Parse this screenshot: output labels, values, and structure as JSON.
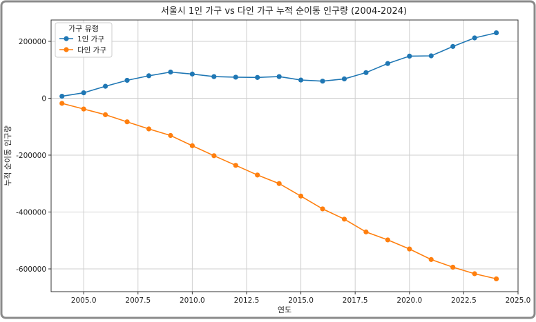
{
  "chart_data": {
    "type": "line",
    "title": "서울시 1인 가구 vs 다인 가구 누적 순이동 인구량 (2004-2024)",
    "xlabel": "연도",
    "ylabel": "누적 순이동 인구량",
    "xlim": [
      2003.5,
      2025.0
    ],
    "ylim": [
      -680000,
      275000
    ],
    "x_ticks": [
      2005.0,
      2007.5,
      2010.0,
      2012.5,
      2015.0,
      2017.5,
      2020.0,
      2022.5,
      2025.0
    ],
    "x_tick_labels": [
      "2005.0",
      "2007.5",
      "2010.0",
      "2012.5",
      "2015.0",
      "2017.5",
      "2020.0",
      "2022.5",
      "2025.0"
    ],
    "y_ticks": [
      200000,
      0,
      -200000,
      -400000,
      -600000
    ],
    "y_tick_labels": [
      "200000",
      "0",
      "-200000",
      "-400000",
      "-600000"
    ],
    "grid": true,
    "legend": {
      "title": "가구 유형",
      "position": "top-left"
    },
    "x": [
      2004,
      2005,
      2006,
      2007,
      2008,
      2009,
      2010,
      2011,
      2012,
      2013,
      2014,
      2015,
      2016,
      2017,
      2018,
      2019,
      2020,
      2021,
      2022,
      2023,
      2024
    ],
    "series": [
      {
        "name": "1인 가구",
        "color": "#1f77b4",
        "values": [
          7000,
          19000,
          42000,
          63000,
          79000,
          92000,
          85000,
          76000,
          74000,
          73000,
          76000,
          64000,
          60000,
          68000,
          90000,
          122000,
          148000,
          149000,
          182000,
          212000,
          230000
        ]
      },
      {
        "name": "다인 가구",
        "color": "#ff7f0e",
        "values": [
          -18000,
          -38000,
          -58000,
          -83000,
          -108000,
          -131000,
          -167000,
          -202000,
          -236000,
          -270000,
          -300000,
          -344000,
          -389000,
          -425000,
          -470000,
          -498000,
          -530000,
          -567000,
          -594000,
          -617000,
          -635000
        ]
      }
    ]
  }
}
